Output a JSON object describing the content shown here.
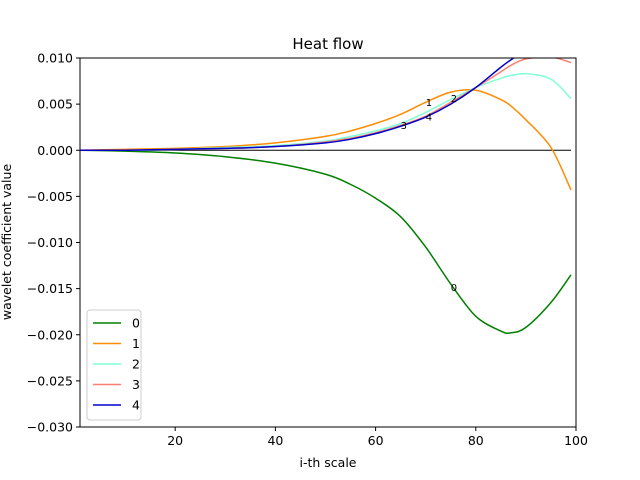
{
  "chart_data": {
    "type": "line",
    "title": "Heat flow",
    "xlabel": "i-th scale",
    "ylabel": "wavelet coefficient value",
    "xlim": [
      1,
      100
    ],
    "ylim": [
      -0.03,
      0.01
    ],
    "xticks": [
      20,
      40,
      60,
      80,
      100
    ],
    "xtick_labels": [
      "20",
      "40",
      "60",
      "80",
      "100"
    ],
    "yticks": [
      -0.03,
      -0.025,
      -0.02,
      -0.015,
      -0.01,
      -0.005,
      0.0,
      0.005,
      0.01
    ],
    "ytick_labels": [
      "−0.030",
      "−0.025",
      "−0.020",
      "−0.015",
      "−0.010",
      "−0.005",
      "0.000",
      "0.005",
      "0.010"
    ],
    "grid": false,
    "legend_position": "lower-left",
    "x": [
      1,
      10,
      20,
      30,
      40,
      50,
      55,
      60,
      65,
      70,
      75,
      80,
      85,
      87,
      90,
      95,
      99
    ],
    "series": [
      {
        "name": "0",
        "color": "#008000",
        "values": [
          0.0,
          -0.0001,
          -0.0003,
          -0.0007,
          -0.0014,
          -0.0026,
          -0.0037,
          -0.0052,
          -0.0072,
          -0.0105,
          -0.0145,
          -0.018,
          -0.0196,
          -0.0198,
          -0.0192,
          -0.0165,
          -0.0135
        ]
      },
      {
        "name": "1",
        "color": "#ff8c00",
        "values": [
          0.0,
          0.0001,
          0.0002,
          0.0004,
          0.0008,
          0.0015,
          0.0021,
          0.0029,
          0.0039,
          0.0052,
          0.0063,
          0.0065,
          0.0055,
          0.0048,
          0.0033,
          0.0003,
          -0.0043
        ]
      },
      {
        "name": "2",
        "color": "#7fffd4",
        "values": [
          0.0,
          0.0,
          0.0001,
          0.0003,
          0.0005,
          0.001,
          0.0015,
          0.0021,
          0.0029,
          0.0041,
          0.0055,
          0.0068,
          0.0078,
          0.0081,
          0.0083,
          0.0077,
          0.0056
        ]
      },
      {
        "name": "3",
        "color": "#fa8072",
        "values": [
          0.0,
          0.0,
          0.0001,
          0.0002,
          0.0004,
          0.0009,
          0.0013,
          0.0019,
          0.0027,
          0.0037,
          0.0052,
          0.0068,
          0.0085,
          0.0092,
          0.0099,
          0.0101,
          0.0095
        ]
      },
      {
        "name": "4",
        "color": "#0000cd",
        "values": [
          0.0,
          0.0,
          0.0001,
          0.0002,
          0.0004,
          0.0008,
          0.0012,
          0.0018,
          0.0026,
          0.0036,
          0.005,
          0.0068,
          0.009,
          0.0098,
          0.0108,
          0.0122,
          0.0131
        ]
      }
    ],
    "annotations": [
      {
        "text": "0",
        "x": 75,
        "y": -0.0149
      },
      {
        "text": "1",
        "x": 70,
        "y": 0.0052
      },
      {
        "text": "2",
        "x": 75,
        "y": 0.0056
      },
      {
        "text": "3",
        "x": 65,
        "y": 0.0027
      },
      {
        "text": "4",
        "x": 70,
        "y": 0.0036
      }
    ],
    "hline_y": 0.0
  }
}
